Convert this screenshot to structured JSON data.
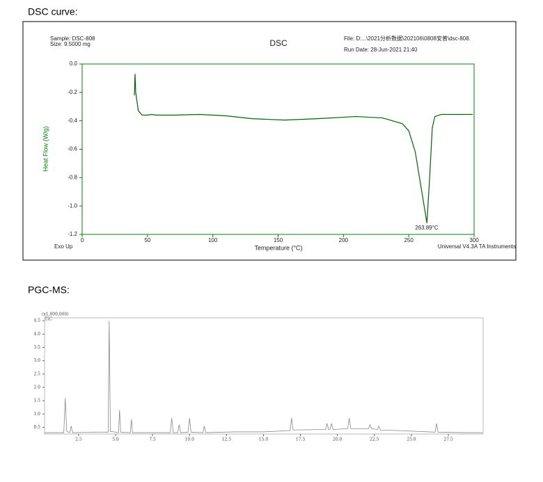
{
  "headings": [
    "DSC curve:",
    "PGC-MS:"
  ],
  "chart_data": [
    {
      "type": "line",
      "title": "DSC",
      "sample": "Sample: DSC-808",
      "size": "Size:  9.5000 mg",
      "file": "File: D:...\\2021分析数据\\202106\\0808安普\\dsc-808.",
      "run_date": "Run Date: 28-Jun-2021 21:40",
      "left_note": "Exo Up",
      "right_note": "Universal V4.3A TA Instruments",
      "x_label": "Temperature (°C)",
      "y_label": "Heat Flow (W/g)",
      "annotation": "263.89°C",
      "x": [
        40,
        40.5,
        41,
        43,
        46,
        50,
        53,
        57,
        70,
        90,
        110,
        130,
        155,
        180,
        210,
        230,
        245,
        250,
        255,
        260,
        263.89,
        266,
        268,
        270,
        275,
        299
      ],
      "series": [
        {
          "color": "#006400",
          "values": [
            -0.22,
            -0.07,
            -0.2,
            -0.33,
            -0.36,
            -0.36,
            -0.355,
            -0.36,
            -0.36,
            -0.355,
            -0.365,
            -0.385,
            -0.395,
            -0.385,
            -0.37,
            -0.38,
            -0.42,
            -0.47,
            -0.62,
            -0.9,
            -1.12,
            -0.8,
            -0.45,
            -0.37,
            -0.355,
            -0.355
          ]
        }
      ],
      "xlim": [
        0,
        300
      ],
      "xticks": [
        0,
        50,
        100,
        150,
        200,
        250,
        300
      ],
      "ylim": [
        -1.2,
        0
      ],
      "yticks": [
        {
          "value": 0,
          "label": "0.0"
        },
        -0.2,
        -0.4,
        -0.6,
        -0.8,
        {
          "value": -1,
          "label": "-1.0"
        },
        -1.2
      ]
    },
    {
      "type": "line",
      "y_unit": "(x1,000,000)",
      "x": [
        0.2,
        1.5,
        1.6,
        1.7,
        1.9,
        2.0,
        2.1,
        3.5,
        4.5,
        4.57,
        4.65,
        5.2,
        5.27,
        5.35,
        6.0,
        6.07,
        6.15,
        7.5,
        8.7,
        8.8,
        8.9,
        9.2,
        9.3,
        9.4,
        9.9,
        10.0,
        10.1,
        10.9,
        11.0,
        11.1,
        13.0,
        15.0,
        16.8,
        16.9,
        17.0,
        19.2,
        19.3,
        19.4,
        19.5,
        19.6,
        19.7,
        20.7,
        20.8,
        20.9,
        22.1,
        22.2,
        22.3,
        22.7,
        22.8,
        22.9,
        24.0,
        26.6,
        26.7,
        26.8,
        28.5,
        29.8
      ],
      "series": [
        {
          "name": "TIC",
          "color": "#888888",
          "values": [
            0.3,
            0.3,
            1.6,
            0.35,
            0.3,
            0.55,
            0.3,
            0.32,
            0.32,
            4.5,
            0.35,
            0.3,
            1.15,
            0.32,
            0.3,
            0.8,
            0.3,
            0.3,
            0.3,
            0.85,
            0.3,
            0.3,
            0.6,
            0.3,
            0.32,
            0.85,
            0.32,
            0.3,
            0.55,
            0.3,
            0.33,
            0.33,
            0.38,
            0.85,
            0.4,
            0.42,
            0.65,
            0.42,
            0.42,
            0.65,
            0.42,
            0.45,
            0.85,
            0.45,
            0.45,
            0.6,
            0.45,
            0.42,
            0.55,
            0.4,
            0.38,
            0.32,
            0.65,
            0.32,
            0.3,
            0.3
          ]
        }
      ],
      "xlim": [
        0.2,
        29.85
      ],
      "xticks": [
        2.5,
        {
          "value": 5,
          "label": "5.0"
        },
        7.5,
        {
          "value": 10,
          "label": "10.0"
        },
        12.5,
        {
          "value": 15,
          "label": "15.0"
        },
        17.5,
        {
          "value": 20,
          "label": "20.0"
        },
        22.5,
        {
          "value": 25,
          "label": "25.0"
        },
        27.5
      ],
      "ylim": [
        0.25,
        4.61
      ],
      "yticks": [
        0.5,
        {
          "value": 1,
          "label": "1.0"
        },
        1.5,
        {
          "value": 2,
          "label": "2.0"
        },
        2.5,
        {
          "value": 3,
          "label": "3.0"
        },
        3.5,
        {
          "value": 4,
          "label": "4.0"
        },
        4.5
      ]
    }
  ]
}
